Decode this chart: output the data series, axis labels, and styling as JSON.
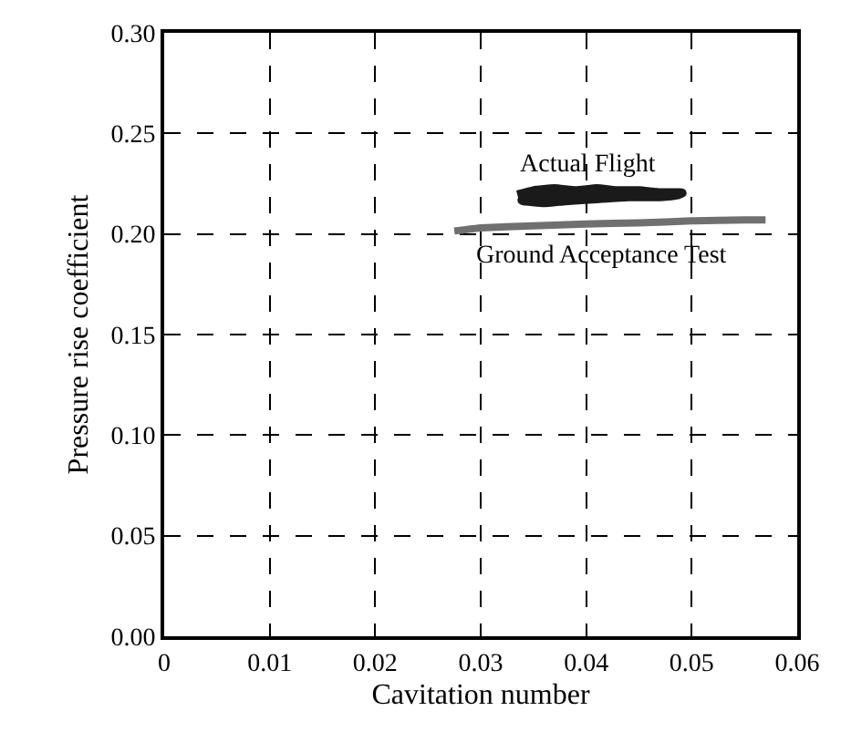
{
  "chart_data": {
    "type": "line",
    "xlabel": "Cavitation number",
    "ylabel": "Pressure rise coefficient",
    "xlim": [
      0,
      0.06
    ],
    "xticks": [
      {
        "value": 0,
        "label": "0"
      },
      0.01,
      0.02,
      0.03,
      0.04,
      0.05,
      0.06
    ],
    "ylim": [
      0,
      0.3
    ],
    "yticks": [
      {
        "value": 0,
        "label": "0.00"
      },
      {
        "value": 0.05,
        "label": "0.05"
      },
      {
        "value": 0.1,
        "label": "0.10"
      },
      {
        "value": 0.15,
        "label": "0.15"
      },
      {
        "value": 0.2,
        "label": "0.20"
      },
      {
        "value": 0.25,
        "label": "0.25"
      },
      {
        "value": 0.3,
        "label": "0.30"
      }
    ],
    "grid": true,
    "legend": false,
    "marker": "none",
    "series": [
      {
        "name": "Actual Flight",
        "color": "#1a1a1a",
        "x": [
          0.0335,
          0.035,
          0.037,
          0.039,
          0.041,
          0.043,
          0.045,
          0.047,
          0.049,
          0.047,
          0.044,
          0.041,
          0.038,
          0.036,
          0.034,
          0.035,
          0.037,
          0.04,
          0.042
        ],
        "values": [
          0.219,
          0.221,
          0.222,
          0.221,
          0.222,
          0.221,
          0.221,
          0.22,
          0.22,
          0.219,
          0.219,
          0.218,
          0.217,
          0.216,
          0.217,
          0.218,
          0.219,
          0.22,
          0.219
        ]
      },
      {
        "name": "Ground Acceptance Test",
        "color": "#707070",
        "x": [
          0.0275,
          0.03,
          0.035,
          0.04,
          0.045,
          0.05,
          0.055,
          0.057
        ],
        "values": [
          0.2015,
          0.203,
          0.204,
          0.205,
          0.2055,
          0.2065,
          0.207,
          0.207
        ]
      }
    ]
  }
}
